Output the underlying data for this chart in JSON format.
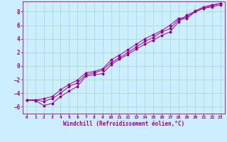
{
  "xlabel": "Windchill (Refroidissement éolien,°C)",
  "ylabel": "",
  "background_color": "#cceeff",
  "grid_color": "#aaddcc",
  "line_color": "#990099",
  "xlim": [
    -0.5,
    23.5
  ],
  "ylim": [
    -7,
    9.5
  ],
  "x_ticks": [
    0,
    1,
    2,
    3,
    4,
    5,
    6,
    7,
    8,
    9,
    10,
    11,
    12,
    13,
    14,
    15,
    16,
    17,
    18,
    19,
    20,
    21,
    22,
    23
  ],
  "y_ticks": [
    -6,
    -4,
    -2,
    0,
    2,
    4,
    6,
    8
  ],
  "line1_x": [
    0,
    1,
    2,
    3,
    4,
    5,
    6,
    7,
    8,
    9,
    10,
    11,
    12,
    13,
    14,
    15,
    16,
    17,
    18,
    19,
    20,
    21,
    22,
    23
  ],
  "line1_y": [
    -5.0,
    -5.1,
    -5.8,
    -5.5,
    -4.5,
    -3.7,
    -3.0,
    -1.5,
    -1.3,
    -1.1,
    0.2,
    1.0,
    1.7,
    2.5,
    3.2,
    3.8,
    4.5,
    5.0,
    6.5,
    7.5,
    8.0,
    8.5,
    8.7,
    9.0
  ],
  "line2_x": [
    0,
    1,
    2,
    3,
    4,
    5,
    6,
    7,
    8,
    9,
    10,
    11,
    12,
    13,
    14,
    15,
    16,
    17,
    18,
    19,
    20,
    21,
    22,
    23
  ],
  "line2_y": [
    -5.0,
    -5.0,
    -5.2,
    -4.8,
    -4.0,
    -3.0,
    -2.5,
    -1.3,
    -1.0,
    -0.6,
    0.5,
    1.2,
    2.0,
    2.8,
    3.6,
    4.2,
    5.0,
    5.5,
    6.8,
    7.0,
    8.0,
    8.5,
    8.9,
    9.2
  ],
  "line3_x": [
    0,
    1,
    2,
    3,
    4,
    5,
    6,
    7,
    8,
    9,
    10,
    11,
    12,
    13,
    14,
    15,
    16,
    17,
    18,
    19,
    20,
    21,
    22,
    23
  ],
  "line3_y": [
    -5.0,
    -5.0,
    -4.8,
    -4.5,
    -3.5,
    -2.7,
    -2.1,
    -1.0,
    -0.8,
    -0.4,
    0.9,
    1.6,
    2.4,
    3.2,
    4.0,
    4.6,
    5.2,
    6.0,
    7.0,
    7.2,
    8.1,
    8.7,
    9.0,
    9.2
  ],
  "figsize": [
    3.2,
    2.0
  ],
  "dpi": 100
}
